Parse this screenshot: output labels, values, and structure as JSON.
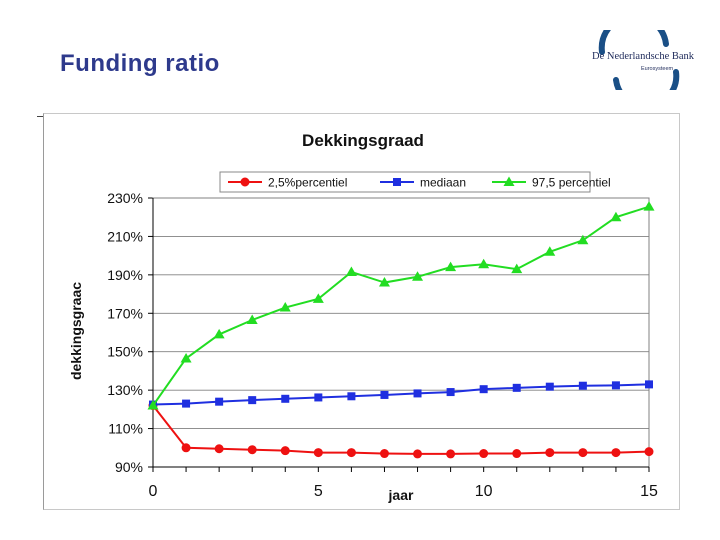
{
  "slide": {
    "title": "Funding ratio",
    "logo_text": "De Nederlandsche Bank",
    "logo_subtext": "Eurosysteem"
  },
  "chart_data": {
    "type": "line",
    "title": "Dekkingsgraad",
    "xlabel": "jaar",
    "ylabel": "dekkingsgraac",
    "x": [
      0,
      1,
      2,
      3,
      4,
      5,
      6,
      7,
      8,
      9,
      10,
      11,
      12,
      13,
      14,
      15
    ],
    "xticks": [
      0,
      5,
      10,
      15
    ],
    "xlim": [
      0,
      15
    ],
    "ylim": [
      90,
      230
    ],
    "yticks": [
      90,
      110,
      130,
      150,
      170,
      190,
      210,
      230
    ],
    "ytick_labels": [
      "90%",
      "110%",
      "130%",
      "150%",
      "170%",
      "190%",
      "210%",
      "230%"
    ],
    "grid": true,
    "legend_position": "top",
    "series": [
      {
        "name": "2,5%percentiel",
        "color": "#ee1111",
        "marker": "circle",
        "values": [
          122,
          100,
          99.5,
          99,
          98.5,
          97.5,
          97.5,
          97,
          96.8,
          96.8,
          97,
          97,
          97.5,
          97.5,
          97.5,
          98
        ]
      },
      {
        "name": "mediaan",
        "color": "#1f2fe0",
        "marker": "square",
        "values": [
          122.5,
          123,
          124,
          124.8,
          125.5,
          126.2,
          126.8,
          127.5,
          128.3,
          129,
          130.5,
          131.2,
          131.8,
          132.3,
          132.5,
          133
        ]
      },
      {
        "name": "97,5 percentiel",
        "color": "#22dd22",
        "marker": "triangle",
        "values": [
          122,
          146.5,
          159,
          166.5,
          173,
          177.5,
          191.5,
          186,
          189,
          194,
          195.5,
          193,
          202,
          208,
          220,
          225.5
        ]
      }
    ]
  }
}
